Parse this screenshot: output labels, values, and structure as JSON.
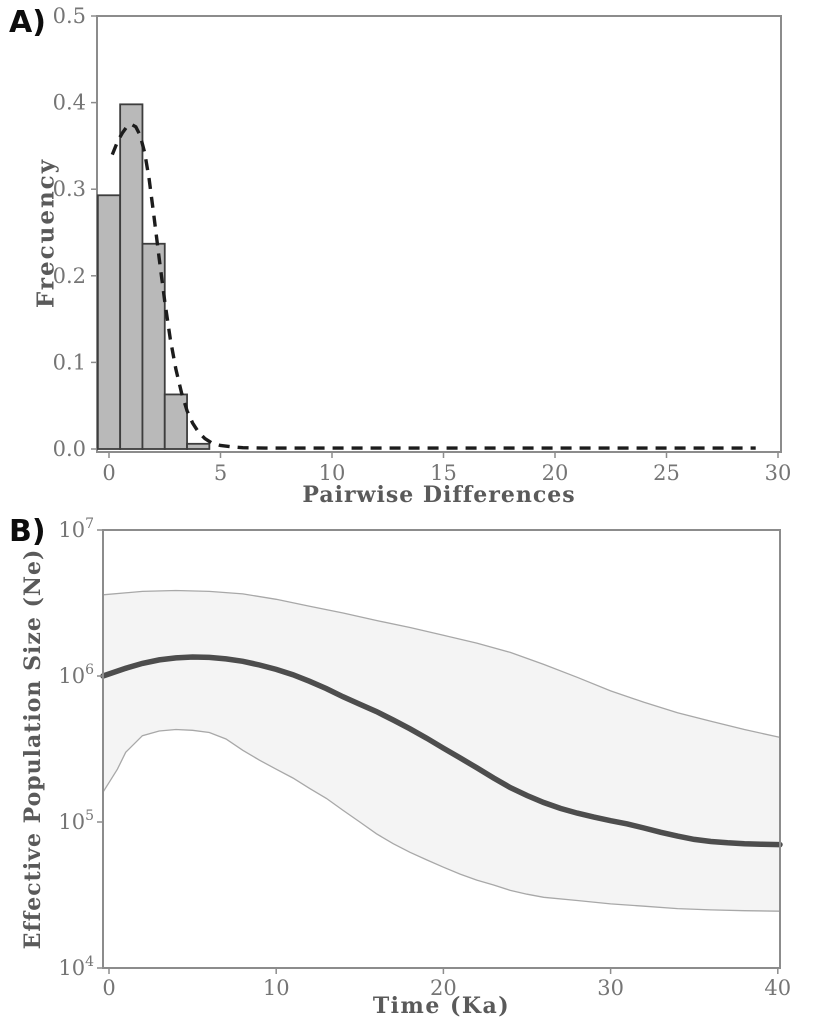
{
  "colors": {
    "frame": "#8c8c8c",
    "tick_text": "#757575",
    "axis_title_text": "#5a5a5a",
    "bar_fill": "#b9b9b9",
    "bar_stroke": "#3d3d3d",
    "dashed_curve": "#1c1c1c",
    "band_fill": "#f4f4f4",
    "band_edge": "#a8a8a8",
    "median_line": "#4d4d4d",
    "panel_letter": "#0d0d0d"
  },
  "panel_a": {
    "label": "A)"
  },
  "panel_b": {
    "label": "B)"
  },
  "chart_data": [
    {
      "id": "mismatch-distribution",
      "type": "bar",
      "panel": "A",
      "xlabel": "Pairwise Differences",
      "ylabel": "Frecuency",
      "xlim": [
        -0.5,
        30.6
      ],
      "ylim": [
        0,
        0.5
      ],
      "grid": false,
      "x_ticks": [
        0,
        5,
        10,
        15,
        20,
        25,
        30
      ],
      "x_tick_labels": [
        "0",
        "5",
        "10",
        "15",
        "20",
        "25",
        "30"
      ],
      "y_ticks": [
        0.0,
        0.1,
        0.2,
        0.3,
        0.4,
        0.5
      ],
      "y_tick_labels": [
        "0.0",
        "0.1",
        "0.2",
        "0.3",
        "0.4",
        "0.5"
      ],
      "bars": {
        "centers": [
          0,
          1,
          2,
          3,
          4
        ],
        "width": 1,
        "values": [
          0.293,
          0.398,
          0.237,
          0.063,
          0.006
        ]
      },
      "expected_curve": {
        "name": "expected-distribution-dashed",
        "style": "dashed",
        "x": [
          0.15,
          0.4,
          0.6,
          0.8,
          1.0,
          1.2,
          1.4,
          1.6,
          1.8,
          2.0,
          2.25,
          2.5,
          2.75,
          3.0,
          3.25,
          3.5,
          3.75,
          4.0,
          4.3,
          4.6,
          5.0,
          5.5,
          6.0,
          7.0,
          9.0,
          12.0,
          16.0,
          20.0,
          24.0,
          29.0
        ],
        "y": [
          0.34,
          0.356,
          0.365,
          0.372,
          0.375,
          0.372,
          0.362,
          0.342,
          0.312,
          0.272,
          0.22,
          0.17,
          0.127,
          0.092,
          0.065,
          0.044,
          0.03,
          0.02,
          0.012,
          0.007,
          0.004,
          0.0025,
          0.0015,
          0.001,
          0.001,
          0.001,
          0.001,
          0.001,
          0.001,
          0.001
        ]
      }
    },
    {
      "id": "bayesian-skyline-plot",
      "type": "line",
      "panel": "B",
      "xlabel": "Time (Ka)",
      "ylabel": "Effective Population Size (Ne)",
      "xlim": [
        -0.4,
        40
      ],
      "ylim": [
        10000,
        10000000
      ],
      "y_scale": "log10",
      "grid": false,
      "x_ticks": [
        0,
        10,
        20,
        30,
        40
      ],
      "x_tick_labels": [
        "0",
        "10",
        "20",
        "30",
        "40"
      ],
      "y_ticks": [
        10000000,
        1000000,
        100000,
        10000
      ],
      "y_tick_labels": [
        {
          "base": "10",
          "exp": "7"
        },
        {
          "base": "10",
          "exp": "6"
        },
        {
          "base": "10",
          "exp": "5"
        },
        {
          "base": "10",
          "exp": "4"
        }
      ],
      "series": [
        {
          "name": "median-ne",
          "role": "median",
          "x": [
            0,
            1,
            2,
            3,
            4,
            5,
            6,
            7,
            8,
            9,
            10,
            11,
            12,
            13,
            14,
            15,
            16,
            17,
            18,
            19,
            20,
            21,
            22,
            23,
            24,
            25,
            26,
            27,
            28,
            29,
            30,
            31,
            32,
            33,
            34,
            35,
            36,
            37,
            38,
            39,
            40
          ],
          "y": [
            1000000.0,
            1130000.0,
            1220000.0,
            1290000.0,
            1330000.0,
            1350000.0,
            1340000.0,
            1310000.0,
            1260000.0,
            1190000.0,
            1110000.0,
            1020000.0,
            920000.0,
            820000.0,
            720000.0,
            640000.0,
            570000.0,
            500000.0,
            435000.0,
            375000.0,
            320000.0,
            275000.0,
            235000.0,
            200000.0,
            172000.0,
            152000.0,
            136000.0,
            124000.0,
            115000.0,
            108000.0,
            102000.0,
            97000.0,
            91000.0,
            85000.0,
            80000.0,
            76000.0,
            73500.0,
            72000.0,
            71000.0,
            70500.0,
            70000.0
          ]
        },
        {
          "name": "upper-95-hpd",
          "role": "upper-bound",
          "x": [
            0,
            2,
            4,
            6,
            8,
            10,
            12,
            14,
            16,
            18,
            20,
            22,
            24,
            26,
            28,
            30,
            32,
            34,
            36,
            38,
            40
          ],
          "y": [
            3600000.0,
            3800000.0,
            3850000.0,
            3800000.0,
            3650000.0,
            3350000.0,
            3000000.0,
            2700000.0,
            2400000.0,
            2150000.0,
            1900000.0,
            1680000.0,
            1450000.0,
            1200000.0,
            980000.0,
            790000.0,
            660000.0,
            560000.0,
            490000.0,
            430000.0,
            380000.0
          ]
        },
        {
          "name": "lower-95-hpd",
          "role": "lower-bound",
          "x": [
            0,
            0.5,
            1,
            2,
            3,
            4,
            5,
            6,
            7,
            8,
            9,
            10,
            11,
            12,
            13,
            14,
            15,
            16,
            17,
            18,
            19,
            20,
            21,
            22,
            23,
            24,
            25,
            26,
            28,
            30,
            32,
            34,
            36,
            38,
            40
          ],
          "y": [
            160000.0,
            230000.0,
            300000.0,
            390000.0,
            420000.0,
            430000.0,
            425000.0,
            410000.0,
            370000.0,
            310000.0,
            265000.0,
            230000.0,
            200000.0,
            170000.0,
            145000.0,
            120000.0,
            100000.0,
            83000.0,
            71000.0,
            62000.0,
            55000.0,
            49000.0,
            44000.0,
            40000.0,
            37000.0,
            34000.0,
            32000.0,
            30500.0,
            29000.0,
            27500.0,
            26500.0,
            25500.0,
            25000.0,
            24700.0,
            24500.0
          ]
        }
      ]
    }
  ]
}
